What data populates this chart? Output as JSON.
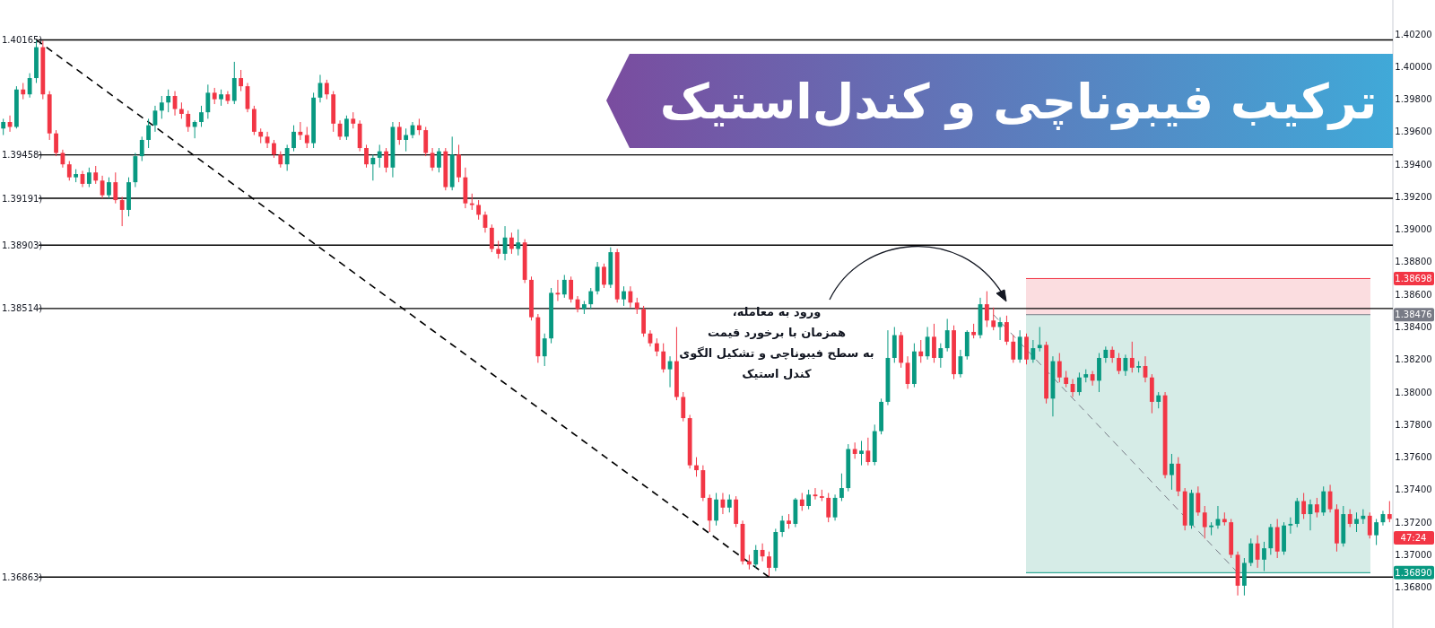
{
  "chart_data": {
    "type": "candlestick",
    "title": "ترکیب فیبوناچی و کندل‌استیک",
    "annotations": [
      "ورود به معامله،\nهمزمان با برخورد قیمت\nبه سطح فیبوناچی و تشکیل الگوی\nکندل استیک",
      "47:24"
    ],
    "categories": [
      null,
      null,
      null,
      null,
      null,
      null,
      null,
      null,
      null,
      null,
      null,
      null,
      null,
      null,
      null,
      null,
      null,
      null,
      null,
      null,
      null,
      null,
      null,
      null,
      null,
      null,
      null,
      null,
      null,
      null,
      null,
      null,
      null,
      null,
      null,
      null,
      null,
      null,
      null,
      null,
      null,
      null,
      null,
      null,
      null,
      null,
      null,
      null,
      null,
      null,
      null,
      null,
      null,
      null,
      null,
      null,
      null,
      null,
      null,
      null,
      null,
      null,
      null,
      null,
      null,
      null,
      null,
      null,
      null,
      null,
      null,
      null,
      null,
      null,
      null,
      null,
      null,
      null,
      null,
      null,
      null,
      null,
      null,
      null,
      null,
      null,
      null,
      null,
      null,
      null,
      null,
      null,
      null,
      null,
      null,
      null,
      null,
      null,
      null,
      null,
      null,
      null,
      null,
      null,
      null,
      null,
      null,
      null,
      null,
      null,
      null,
      null,
      null,
      null,
      null,
      null,
      null,
      null,
      null,
      null,
      null,
      null,
      null,
      null,
      null,
      null,
      null,
      null,
      null,
      null,
      null,
      null,
      null,
      null,
      null,
      null,
      null,
      null,
      null,
      null,
      null,
      null,
      null,
      null,
      null,
      null,
      null,
      null,
      null,
      null,
      null,
      null,
      null,
      null,
      null,
      null,
      null,
      null,
      null,
      null,
      null,
      null,
      null,
      null,
      null,
      null,
      null,
      null,
      null,
      null,
      null,
      null,
      null,
      null,
      null,
      null,
      null,
      null,
      null,
      null,
      null,
      null,
      null,
      null,
      null,
      null,
      null,
      null,
      null,
      null,
      null,
      null,
      null,
      null,
      null,
      null,
      null,
      null,
      null,
      null,
      null,
      null,
      null,
      null,
      null,
      null,
      null,
      null,
      null,
      null,
      null
    ],
    "ohlc": [
      [
        1.3962,
        1.3968,
        1.3958,
        1.3966
      ],
      [
        1.3966,
        1.397,
        1.396,
        1.3963
      ],
      [
        1.3963,
        1.3988,
        1.3962,
        1.3986
      ],
      [
        1.3986,
        1.399,
        1.398,
        1.3983
      ],
      [
        1.3983,
        1.3996,
        1.3981,
        1.3993
      ],
      [
        1.3993,
        1.4016,
        1.399,
        1.4012
      ],
      [
        1.4012,
        1.4016,
        1.398,
        1.3983
      ],
      [
        1.3983,
        1.3985,
        1.3955,
        1.3959
      ],
      [
        1.3959,
        1.3961,
        1.3945,
        1.3947
      ],
      [
        1.3947,
        1.3949,
        1.3938,
        1.394
      ],
      [
        1.394,
        1.3942,
        1.393,
        1.3932
      ],
      [
        1.3932,
        1.3937,
        1.3929,
        1.3934
      ],
      [
        1.3934,
        1.3936,
        1.3926,
        1.3928
      ],
      [
        1.3928,
        1.3938,
        1.3926,
        1.3935
      ],
      [
        1.3935,
        1.3939,
        1.3928,
        1.393
      ],
      [
        1.393,
        1.3933,
        1.3919,
        1.3921
      ],
      [
        1.3921,
        1.3932,
        1.3919,
        1.3929
      ],
      [
        1.3929,
        1.3935,
        1.3916,
        1.3918
      ],
      [
        1.3918,
        1.392,
        1.3902,
        1.3912
      ],
      [
        1.3912,
        1.3932,
        1.3908,
        1.3929
      ],
      [
        1.3929,
        1.3947,
        1.3926,
        1.3945
      ],
      [
        1.3945,
        1.3957,
        1.3942,
        1.3955
      ],
      [
        1.3955,
        1.3968,
        1.395,
        1.3964
      ],
      [
        1.3964,
        1.3976,
        1.396,
        1.3973
      ],
      [
        1.3973,
        1.3982,
        1.3968,
        1.3978
      ],
      [
        1.3978,
        1.3986,
        1.3972,
        1.3982
      ],
      [
        1.3982,
        1.3985,
        1.397,
        1.3974
      ],
      [
        1.3974,
        1.3978,
        1.3968,
        1.3971
      ],
      [
        1.3971,
        1.3973,
        1.396,
        1.3963
      ],
      [
        1.3963,
        1.3967,
        1.3956,
        1.3966
      ],
      [
        1.3966,
        1.3976,
        1.3963,
        1.3972
      ],
      [
        1.3972,
        1.3989,
        1.3968,
        1.3984
      ],
      [
        1.3984,
        1.3987,
        1.3977,
        1.398
      ],
      [
        1.398,
        1.3986,
        1.3976,
        1.3983
      ],
      [
        1.3983,
        1.3985,
        1.3977,
        1.3979
      ],
      [
        1.3979,
        1.4003,
        1.3977,
        1.3993
      ],
      [
        1.3993,
        1.3998,
        1.3985,
        1.3988
      ],
      [
        1.3988,
        1.399,
        1.3972,
        1.3974
      ],
      [
        1.3974,
        1.3976,
        1.3958,
        1.396
      ],
      [
        1.396,
        1.3962,
        1.3953,
        1.3957
      ],
      [
        1.3957,
        1.396,
        1.395,
        1.3953
      ],
      [
        1.3953,
        1.3955,
        1.3944,
        1.3946
      ],
      [
        1.3946,
        1.3948,
        1.3938,
        1.394
      ],
      [
        1.394,
        1.3952,
        1.3936,
        1.395
      ],
      [
        1.395,
        1.3964,
        1.3948,
        1.396
      ],
      [
        1.396,
        1.3966,
        1.3955,
        1.3958
      ],
      [
        1.3958,
        1.3963,
        1.395,
        1.3953
      ],
      [
        1.3953,
        1.3984,
        1.395,
        1.3981
      ],
      [
        1.3981,
        1.3995,
        1.3978,
        1.399
      ],
      [
        1.399,
        1.3992,
        1.398,
        1.3983
      ],
      [
        1.3983,
        1.3985,
        1.396,
        1.3965
      ],
      [
        1.3965,
        1.3967,
        1.3955,
        1.3957
      ],
      [
        1.3957,
        1.397,
        1.3955,
        1.3968
      ],
      [
        1.3968,
        1.3972,
        1.3962,
        1.3965
      ],
      [
        1.3965,
        1.3967,
        1.3948,
        1.395
      ],
      [
        1.395,
        1.3952,
        1.3938,
        1.394
      ],
      [
        1.394,
        1.3946,
        1.393,
        1.3944
      ],
      [
        1.3944,
        1.3952,
        1.3938,
        1.3948
      ],
      [
        1.3948,
        1.395,
        1.3935,
        1.3938
      ],
      [
        1.3938,
        1.3966,
        1.3932,
        1.3963
      ],
      [
        1.3963,
        1.3966,
        1.3952,
        1.3955
      ],
      [
        1.3955,
        1.3962,
        1.3948,
        1.3958
      ],
      [
        1.3958,
        1.3966,
        1.3956,
        1.3964
      ],
      [
        1.3964,
        1.3968,
        1.3958,
        1.3961
      ],
      [
        1.3961,
        1.3963,
        1.3945,
        1.3947
      ],
      [
        1.3947,
        1.395,
        1.3936,
        1.3938
      ],
      [
        1.3938,
        1.395,
        1.3935,
        1.3948
      ],
      [
        1.3948,
        1.395,
        1.3924,
        1.3926
      ],
      [
        1.3926,
        1.3957,
        1.3924,
        1.3946
      ],
      [
        1.3946,
        1.3952,
        1.3929,
        1.3932
      ],
      [
        1.3932,
        1.3938,
        1.3913,
        1.3916
      ],
      [
        1.3916,
        1.3922,
        1.3912,
        1.3915
      ],
      [
        1.3915,
        1.3918,
        1.3906,
        1.3909
      ],
      [
        1.3909,
        1.3911,
        1.3898,
        1.3901
      ],
      [
        1.3901,
        1.3903,
        1.3886,
        1.3888
      ],
      [
        1.3888,
        1.3893,
        1.3882,
        1.3885
      ],
      [
        1.3885,
        1.3902,
        1.3881,
        1.3895
      ],
      [
        1.3895,
        1.3898,
        1.3885,
        1.3888
      ],
      [
        1.3888,
        1.39,
        1.3884,
        1.3892
      ],
      [
        1.3892,
        1.3894,
        1.3867,
        1.3869
      ],
      [
        1.3869,
        1.3871,
        1.3844,
        1.3846
      ],
      [
        1.3846,
        1.3848,
        1.3818,
        1.3822
      ],
      [
        1.3822,
        1.3836,
        1.3816,
        1.3833
      ],
      [
        1.3833,
        1.3864,
        1.383,
        1.3861
      ],
      [
        1.3861,
        1.3869,
        1.3856,
        1.386
      ],
      [
        1.386,
        1.3872,
        1.3858,
        1.3869
      ],
      [
        1.3869,
        1.3871,
        1.3855,
        1.3857
      ],
      [
        1.3857,
        1.3859,
        1.3849,
        1.3851
      ],
      [
        1.3851,
        1.3856,
        1.3848,
        1.3854
      ],
      [
        1.3854,
        1.3864,
        1.3851,
        1.3862
      ],
      [
        1.3862,
        1.388,
        1.386,
        1.3877
      ],
      [
        1.3877,
        1.3879,
        1.3864,
        1.3866
      ],
      [
        1.3866,
        1.3889,
        1.3864,
        1.3886
      ],
      [
        1.3886,
        1.3888,
        1.3855,
        1.3857
      ],
      [
        1.3857,
        1.3865,
        1.3853,
        1.3862
      ],
      [
        1.3862,
        1.3865,
        1.3852,
        1.3855
      ],
      [
        1.3855,
        1.3858,
        1.3848,
        1.3851
      ],
      [
        1.3851,
        1.3853,
        1.3834,
        1.3836
      ],
      [
        1.3836,
        1.3838,
        1.3828,
        1.383
      ],
      [
        1.383,
        1.3833,
        1.3822,
        1.3825
      ],
      [
        1.3825,
        1.383,
        1.3812,
        1.3814
      ],
      [
        1.3814,
        1.3822,
        1.3803,
        1.3819
      ],
      [
        1.3819,
        1.384,
        1.3795,
        1.3797
      ],
      [
        1.3797,
        1.38,
        1.3782,
        1.3784
      ],
      [
        1.3784,
        1.3786,
        1.3753,
        1.3755
      ],
      [
        1.3755,
        1.376,
        1.3748,
        1.3752
      ],
      [
        1.3752,
        1.3755,
        1.3733,
        1.3735
      ],
      [
        1.3735,
        1.3737,
        1.3714,
        1.3721
      ],
      [
        1.3721,
        1.3738,
        1.3718,
        1.3734
      ],
      [
        1.3734,
        1.3738,
        1.3725,
        1.3729
      ],
      [
        1.3729,
        1.3737,
        1.3726,
        1.3734
      ],
      [
        1.3734,
        1.3736,
        1.3717,
        1.3719
      ],
      [
        1.3719,
        1.3721,
        1.3694,
        1.3696
      ],
      [
        1.3696,
        1.37,
        1.3691,
        1.3694
      ],
      [
        1.3694,
        1.3706,
        1.3692,
        1.3703
      ],
      [
        1.3703,
        1.3707,
        1.3696,
        1.3699
      ],
      [
        1.3699,
        1.3702,
        1.3687,
        1.3692
      ],
      [
        1.3692,
        1.3716,
        1.369,
        1.3714
      ],
      [
        1.3714,
        1.3724,
        1.3711,
        1.3721
      ],
      [
        1.3721,
        1.3725,
        1.3716,
        1.3719
      ],
      [
        1.3719,
        1.3735,
        1.3717,
        1.3734
      ],
      [
        1.3734,
        1.3738,
        1.3727,
        1.373
      ],
      [
        1.373,
        1.374,
        1.3728,
        1.3737
      ],
      [
        1.3737,
        1.3741,
        1.3734,
        1.3736
      ],
      [
        1.3736,
        1.374,
        1.3733,
        1.3735
      ],
      [
        1.3735,
        1.3738,
        1.372,
        1.3723
      ],
      [
        1.3723,
        1.3737,
        1.3721,
        1.3735
      ],
      [
        1.3735,
        1.375,
        1.3733,
        1.3741
      ],
      [
        1.3741,
        1.3768,
        1.3739,
        1.3765
      ],
      [
        1.3765,
        1.3769,
        1.3759,
        1.3762
      ],
      [
        1.3762,
        1.377,
        1.3755,
        1.3764
      ],
      [
        1.3764,
        1.3772,
        1.3755,
        1.3757
      ],
      [
        1.3757,
        1.378,
        1.3755,
        1.3776
      ],
      [
        1.3776,
        1.3796,
        1.3774,
        1.3794
      ],
      [
        1.3794,
        1.3838,
        1.3792,
        1.3821
      ],
      [
        1.3821,
        1.384,
        1.3818,
        1.3835
      ],
      [
        1.3835,
        1.3837,
        1.3815,
        1.3818
      ],
      [
        1.3818,
        1.3822,
        1.3802,
        1.3805
      ],
      [
        1.3805,
        1.383,
        1.3803,
        1.3825
      ],
      [
        1.3825,
        1.3832,
        1.3818,
        1.3822
      ],
      [
        1.3822,
        1.384,
        1.382,
        1.3834
      ],
      [
        1.3834,
        1.3842,
        1.3818,
        1.3821
      ],
      [
        1.3821,
        1.383,
        1.3815,
        1.3827
      ],
      [
        1.3827,
        1.3845,
        1.3825,
        1.3838
      ],
      [
        1.3838,
        1.3841,
        1.3808,
        1.3811
      ],
      [
        1.3811,
        1.3826,
        1.3809,
        1.3822
      ],
      [
        1.3822,
        1.3838,
        1.382,
        1.3837
      ],
      [
        1.3837,
        1.3842,
        1.3833,
        1.3835
      ],
      [
        1.3835,
        1.3858,
        1.3833,
        1.3854
      ],
      [
        1.3854,
        1.3862,
        1.384,
        1.3844
      ],
      [
        1.3844,
        1.3852,
        1.3838,
        1.384
      ],
      [
        1.384,
        1.3846,
        1.3832,
        1.3843
      ],
      [
        1.3843,
        1.3847,
        1.3829,
        1.3831
      ],
      [
        1.3831,
        1.3835,
        1.3818,
        1.382
      ],
      [
        1.382,
        1.3838,
        1.3818,
        1.3834
      ],
      [
        1.3834,
        1.3836,
        1.3817,
        1.382
      ],
      [
        1.382,
        1.3832,
        1.3818,
        1.3827
      ],
      [
        1.3827,
        1.384,
        1.3825,
        1.3829
      ],
      [
        1.3829,
        1.3831,
        1.3793,
        1.3796
      ],
      [
        1.3796,
        1.3822,
        1.3785,
        1.3819
      ],
      [
        1.3819,
        1.3824,
        1.3806,
        1.3809
      ],
      [
        1.3809,
        1.3813,
        1.3803,
        1.3805
      ],
      [
        1.3805,
        1.3808,
        1.3797,
        1.38
      ],
      [
        1.38,
        1.3812,
        1.3798,
        1.3809
      ],
      [
        1.3809,
        1.3814,
        1.3806,
        1.3811
      ],
      [
        1.3811,
        1.3813,
        1.3804,
        1.3807
      ],
      [
        1.3807,
        1.3824,
        1.38,
        1.3821
      ],
      [
        1.3821,
        1.3828,
        1.3818,
        1.3826
      ],
      [
        1.3826,
        1.3828,
        1.3818,
        1.3821
      ],
      [
        1.3821,
        1.3824,
        1.3811,
        1.3813
      ],
      [
        1.3813,
        1.3823,
        1.381,
        1.3821
      ],
      [
        1.3821,
        1.3831,
        1.3812,
        1.3815
      ],
      [
        1.3815,
        1.3819,
        1.3812,
        1.3816
      ],
      [
        1.3816,
        1.3822,
        1.3806,
        1.3809
      ],
      [
        1.3809,
        1.3811,
        1.3787,
        1.3794
      ],
      [
        1.3794,
        1.38,
        1.379,
        1.3798
      ],
      [
        1.3798,
        1.38,
        1.3747,
        1.3749
      ],
      [
        1.3749,
        1.3762,
        1.374,
        1.3756
      ],
      [
        1.3756,
        1.376,
        1.3736,
        1.3739
      ],
      [
        1.3739,
        1.3741,
        1.3715,
        1.3718
      ],
      [
        1.3718,
        1.374,
        1.3716,
        1.3738
      ],
      [
        1.3738,
        1.3742,
        1.3724,
        1.3726
      ],
      [
        1.3726,
        1.373,
        1.371,
        1.3717
      ],
      [
        1.3717,
        1.372,
        1.3712,
        1.3718
      ],
      [
        1.3718,
        1.373,
        1.3716,
        1.3722
      ],
      [
        1.3722,
        1.3726,
        1.3718,
        1.372
      ],
      [
        1.372,
        1.3722,
        1.3698,
        1.37
      ],
      [
        1.37,
        1.3702,
        1.3675,
        1.3681
      ],
      [
        1.3681,
        1.3698,
        1.3675,
        1.3695
      ],
      [
        1.3695,
        1.371,
        1.3693,
        1.3707
      ],
      [
        1.3707,
        1.3712,
        1.3692,
        1.3697
      ],
      [
        1.3697,
        1.3708,
        1.369,
        1.3704
      ],
      [
        1.3704,
        1.3719,
        1.37,
        1.3717
      ],
      [
        1.3717,
        1.3722,
        1.3698,
        1.3702
      ],
      [
        1.3702,
        1.372,
        1.37,
        1.3718
      ],
      [
        1.3718,
        1.3723,
        1.3713,
        1.3719
      ],
      [
        1.3719,
        1.3735,
        1.3717,
        1.3733
      ],
      [
        1.3733,
        1.3738,
        1.3722,
        1.3725
      ],
      [
        1.3725,
        1.3734,
        1.3715,
        1.3731
      ],
      [
        1.3731,
        1.3735,
        1.3723,
        1.3726
      ],
      [
        1.3726,
        1.3742,
        1.3724,
        1.3739
      ],
      [
        1.3739,
        1.3743,
        1.3726,
        1.3728
      ],
      [
        1.3728,
        1.3731,
        1.3702,
        1.3707
      ],
      [
        1.3707,
        1.373,
        1.3705,
        1.3725
      ],
      [
        1.3725,
        1.3728,
        1.3717,
        1.3719
      ],
      [
        1.3719,
        1.3726,
        1.3714,
        1.3722
      ],
      [
        1.3722,
        1.3728,
        1.3719,
        1.3724
      ],
      [
        1.3724,
        1.3726,
        1.371,
        1.3712
      ],
      [
        1.3712,
        1.3722,
        1.3706,
        1.372
      ],
      [
        1.372,
        1.3727,
        1.3718,
        1.3725
      ],
      [
        1.3725,
        1.3733,
        1.372,
        1.3722
      ]
    ],
    "series": [
      {
        "type": "line",
        "color": "#000000",
        "line_style": "dashed",
        "values": [
          null,
          null,
          null,
          null,
          null,
          1.40165,
          null,
          null,
          null,
          null,
          null,
          null,
          null,
          null,
          null,
          null,
          null,
          null,
          null,
          null,
          null,
          null,
          null,
          null,
          null,
          null,
          null,
          null,
          null,
          null,
          null,
          null,
          null,
          null,
          null,
          null,
          null,
          null,
          null,
          null,
          null,
          null,
          null,
          null,
          null,
          null,
          null,
          null,
          null,
          null,
          null,
          null,
          null,
          null,
          null,
          null,
          null,
          null,
          null,
          null,
          null,
          null,
          null,
          null,
          null,
          null,
          null,
          null,
          null,
          null,
          null,
          null,
          null,
          null,
          null,
          null,
          null,
          null,
          null,
          null,
          null,
          null,
          null,
          null,
          null,
          null,
          null,
          null,
          null,
          null,
          null,
          null,
          null,
          null,
          null,
          null,
          null,
          null,
          null,
          null,
          null,
          null,
          null,
          null,
          null,
          null,
          null,
          null,
          null,
          null,
          null,
          null,
          null,
          null,
          null,
          null,
          1.36863,
          null,
          null,
          null,
          null,
          null,
          null,
          null,
          null,
          null,
          null,
          null,
          null,
          null,
          null,
          null,
          null,
          null,
          null,
          null,
          null,
          null,
          null,
          null,
          null,
          null,
          null,
          null,
          null,
          null,
          null,
          null,
          null,
          null,
          null,
          null,
          null,
          null,
          null,
          null,
          null,
          null,
          null,
          null,
          null,
          null,
          null,
          null,
          null,
          null,
          null,
          null,
          null,
          null,
          null,
          null,
          null,
          null,
          null,
          null,
          null,
          null,
          null,
          null,
          null,
          null,
          null,
          null,
          null,
          null,
          null,
          null,
          null,
          null,
          null,
          null,
          null,
          null,
          null,
          null,
          null,
          null,
          null,
          null,
          null,
          null,
          null,
          null,
          null,
          null,
          null,
          null,
          null,
          null,
          null
        ]
      },
      {
        "type": "line",
        "color": "#787b86",
        "line_style": "dashed",
        "values": [
          null,
          null,
          null,
          null,
          null,
          null,
          null,
          null,
          null,
          null,
          null,
          null,
          null,
          null,
          null,
          null,
          null,
          null,
          null,
          null,
          null,
          null,
          null,
          null,
          null,
          null,
          null,
          null,
          null,
          null,
          null,
          null,
          null,
          null,
          null,
          null,
          null,
          null,
          null,
          null,
          null,
          null,
          null,
          null,
          null,
          null,
          null,
          null,
          null,
          null,
          null,
          null,
          null,
          null,
          null,
          null,
          null,
          null,
          null,
          null,
          null,
          null,
          null,
          null,
          null,
          null,
          null,
          null,
          null,
          null,
          null,
          null,
          null,
          null,
          null,
          null,
          null,
          null,
          null,
          null,
          null,
          null,
          null,
          null,
          null,
          null,
          null,
          null,
          null,
          null,
          null,
          null,
          null,
          null,
          null,
          null,
          null,
          null,
          null,
          null,
          null,
          null,
          null,
          null,
          null,
          null,
          null,
          null,
          null,
          null,
          null,
          null,
          null,
          null,
          null,
          null,
          null,
          null,
          null,
          null,
          null,
          null,
          null,
          null,
          null,
          null,
          null,
          null,
          null,
          null,
          null,
          null,
          null,
          null,
          null,
          null,
          null,
          null,
          null,
          null,
          null,
          null,
          null,
          null,
          null,
          null,
          null,
          null,
          null,
          null,
          1.38476,
          null,
          null,
          null,
          null,
          null,
          null,
          null,
          null,
          null,
          null,
          null,
          null,
          null,
          null,
          null,
          null,
          null,
          null,
          null,
          null,
          null,
          null,
          null,
          null,
          null,
          null,
          null,
          null,
          null,
          null,
          null,
          null,
          null,
          null,
          null,
          null,
          1.3689,
          null,
          null,
          null,
          null,
          null,
          null,
          null,
          null,
          null,
          null,
          null,
          null,
          null,
          null,
          null,
          null,
          null,
          null,
          null,
          null,
          null,
          null,
          null
        ]
      }
    ],
    "ylim": [
      1.3655,
      1.4041
    ],
    "yticks": [
      {
        "value": 1.368,
        "label": "1.36800"
      },
      {
        "value": 1.37,
        "label": "1.37000"
      },
      {
        "value": 1.372,
        "label": "1.37200"
      },
      {
        "value": 1.374,
        "label": "1.37400"
      },
      {
        "value": 1.376,
        "label": "1.37600"
      },
      {
        "value": 1.378,
        "label": "1.37800"
      },
      {
        "value": 1.38,
        "label": "1.38000"
      },
      {
        "value": 1.382,
        "label": "1.38200"
      },
      {
        "value": 1.384,
        "label": "1.38400"
      },
      {
        "value": 1.386,
        "label": "1.38600"
      },
      {
        "value": 1.388,
        "label": "1.38800"
      },
      {
        "value": 1.39,
        "label": "1.39000"
      },
      {
        "value": 1.392,
        "label": "1.39200"
      },
      {
        "value": 1.394,
        "label": "1.39400"
      },
      {
        "value": 1.396,
        "label": "1.39600"
      },
      {
        "value": 1.398,
        "label": "1.39800"
      },
      {
        "value": 1.4,
        "label": "1.40000"
      },
      {
        "value": 1.402,
        "label": "1.40200"
      }
    ],
    "tick_labels": "y",
    "ref_lines": [
      {
        "axis": "y",
        "value": 1.40165,
        "label": "1.40165)"
      },
      {
        "axis": "y",
        "value": 1.39458,
        "label": "1.39458)"
      },
      {
        "axis": "y",
        "value": 1.39191,
        "label": "1.39191)"
      },
      {
        "axis": "y",
        "value": 1.38903,
        "label": "1.38903)"
      },
      {
        "axis": "y",
        "value": 1.38514,
        "label": "1.38514)"
      },
      {
        "axis": "y",
        "value": 1.36863,
        "label": "1.36863)"
      },
      {
        "axis": "y",
        "value": 1.38698,
        "label": "1.38698",
        "color": "#f23645"
      },
      {
        "axis": "y",
        "value": 1.38476,
        "label": "1.38476",
        "color": "#787b86"
      },
      {
        "axis": "y",
        "value": 1.3689,
        "label": "1.36890",
        "color": "#089981"
      }
    ],
    "bands": [
      {
        "axis": "y",
        "from": 1.38476,
        "to": 1.38698,
        "color": "#fbdde0"
      },
      {
        "axis": "y",
        "from": 1.3689,
        "to": 1.38476,
        "color": "#d6ece7"
      }
    ]
  }
}
